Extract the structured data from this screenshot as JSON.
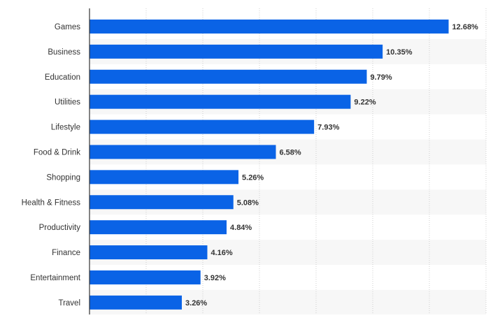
{
  "chart_data": {
    "type": "bar",
    "orientation": "horizontal",
    "categories": [
      "Games",
      "Business",
      "Education",
      "Utilities",
      "Lifestyle",
      "Food & Drink",
      "Shopping",
      "Health & Fitness",
      "Productivity",
      "Finance",
      "Entertainment",
      "Travel"
    ],
    "values": [
      12.68,
      10.35,
      9.79,
      9.22,
      7.93,
      6.58,
      5.26,
      5.08,
      4.84,
      4.16,
      3.92,
      3.26
    ],
    "value_labels": [
      "12.68%",
      "10.35%",
      "9.79%",
      "9.22%",
      "7.93%",
      "6.58%",
      "5.26%",
      "5.08%",
      "4.84%",
      "4.16%",
      "3.92%",
      "3.26%"
    ],
    "unit": "%",
    "xlim": [
      0,
      14
    ],
    "title": "",
    "xlabel": "",
    "ylabel": "",
    "grid": true,
    "legend": "none"
  },
  "colors": {
    "bar": "#0a63e6",
    "stripe": "#f7f7f7",
    "grid": "#cfcfcf",
    "axis": "#333333",
    "text": "#333333"
  }
}
